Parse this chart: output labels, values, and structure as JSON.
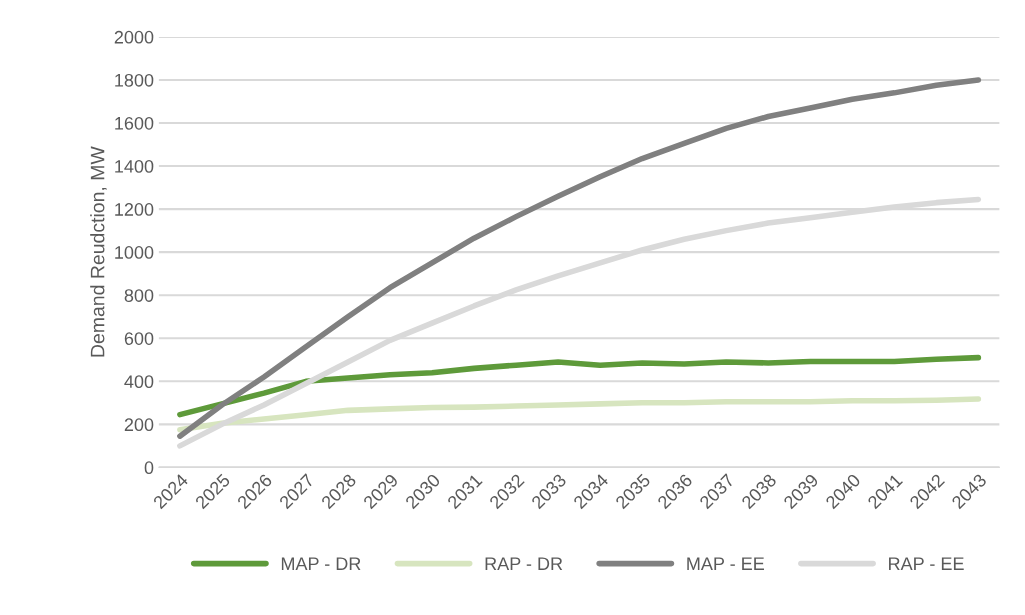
{
  "chart_data": {
    "type": "line",
    "ylabel": "Demand Reudction, MW",
    "categories": [
      "2024",
      "2025",
      "2026",
      "2027",
      "2028",
      "2029",
      "2030",
      "2031",
      "2032",
      "2033",
      "2034",
      "2035",
      "2036",
      "2037",
      "2038",
      "2039",
      "2040",
      "2041",
      "2042",
      "2043"
    ],
    "series": [
      {
        "name": "MAP - DR",
        "color": "#5e9a3a",
        "values": [
          245,
          295,
          345,
          400,
          415,
          430,
          440,
          460,
          475,
          490,
          475,
          485,
          480,
          490,
          485,
          492,
          492,
          492,
          502,
          510
        ]
      },
      {
        "name": "RAP - DR",
        "color": "#d7e5bf",
        "values": [
          175,
          205,
          225,
          245,
          265,
          272,
          278,
          280,
          285,
          290,
          295,
          300,
          300,
          305,
          305,
          305,
          310,
          310,
          312,
          318
        ]
      },
      {
        "name": "MAP - EE",
        "color": "#808080",
        "values": [
          145,
          290,
          420,
          560,
          700,
          835,
          950,
          1065,
          1165,
          1260,
          1350,
          1435,
          1505,
          1575,
          1630,
          1670,
          1710,
          1740,
          1775,
          1800
        ]
      },
      {
        "name": "RAP - EE",
        "color": "#d9d9d9",
        "values": [
          100,
          200,
          290,
          390,
          490,
          590,
          670,
          750,
          825,
          890,
          950,
          1010,
          1060,
          1100,
          1135,
          1160,
          1185,
          1210,
          1230,
          1245
        ]
      }
    ],
    "ylim": [
      0,
      2000
    ],
    "yticks": [
      0,
      200,
      400,
      600,
      800,
      1000,
      1200,
      1400,
      1600,
      1800,
      2000
    ],
    "grid": "y",
    "legend": "bottom",
    "marker": "none",
    "line_style": "solid"
  }
}
